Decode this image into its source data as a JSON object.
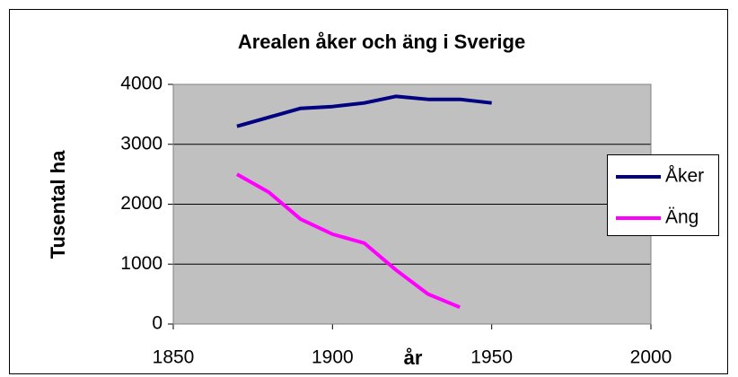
{
  "chart_data": {
    "type": "line",
    "title": "Arealen åker och äng i Sverige",
    "x_label": "år",
    "y_label": "Tusental ha",
    "x": [
      1870,
      1880,
      1890,
      1900,
      1910,
      1920,
      1930,
      1940,
      1950
    ],
    "series": [
      {
        "name": "Åker",
        "color": "#000080",
        "values": [
          3300,
          3450,
          3600,
          3630,
          3690,
          3800,
          3750,
          3750,
          3690
        ]
      },
      {
        "name": "Äng",
        "color": "#ff00ff",
        "values": [
          2500,
          2200,
          1750,
          1500,
          1350,
          900,
          500,
          280,
          null
        ]
      }
    ],
    "xlim": [
      1850,
      2000
    ],
    "xticks": [
      1850,
      1900,
      1950,
      2000
    ],
    "ylim": [
      0,
      4000
    ],
    "yticks": [
      0,
      1000,
      2000,
      3000,
      4000
    ],
    "grid": true,
    "legend": "right",
    "plot_background": "#c0c0c0"
  }
}
